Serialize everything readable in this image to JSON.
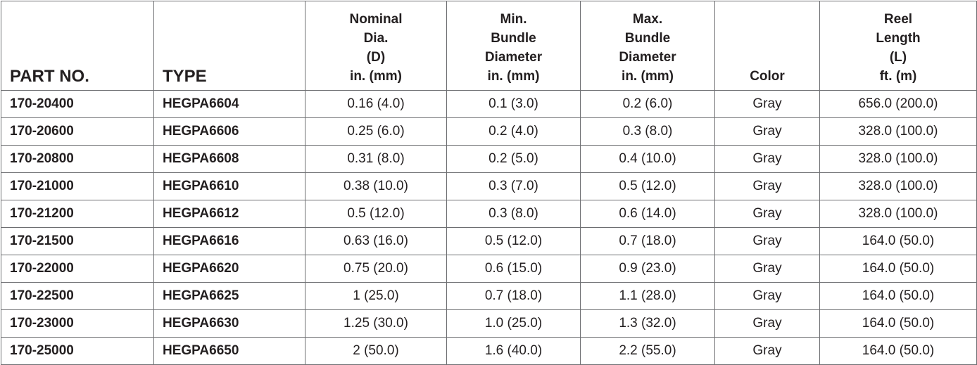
{
  "headers": {
    "part_no": "PART NO.",
    "type": "TYPE",
    "nominal": [
      "Nominal",
      "Dia.",
      "(D)",
      "in. (mm)"
    ],
    "min_bundle": [
      "Min.",
      "Bundle",
      "Diameter",
      "in. (mm)"
    ],
    "max_bundle": [
      "Max.",
      "Bundle",
      "Diameter",
      "in. (mm)"
    ],
    "color": "Color",
    "reel": [
      "Reel",
      "Length",
      "(L)",
      "ft. (m)"
    ]
  },
  "rows": [
    {
      "part_no": "170-20400",
      "type": "HEGPA6604",
      "nominal": "0.16 (4.0)",
      "min_bundle": "0.1 (3.0)",
      "max_bundle": "0.2 (6.0)",
      "color": "Gray",
      "reel": "656.0 (200.0)"
    },
    {
      "part_no": "170-20600",
      "type": "HEGPA6606",
      "nominal": "0.25 (6.0)",
      "min_bundle": "0.2 (4.0)",
      "max_bundle": "0.3 (8.0)",
      "color": "Gray",
      "reel": "328.0 (100.0)"
    },
    {
      "part_no": "170-20800",
      "type": "HEGPA6608",
      "nominal": "0.31 (8.0)",
      "min_bundle": "0.2 (5.0)",
      "max_bundle": "0.4 (10.0)",
      "color": "Gray",
      "reel": "328.0 (100.0)"
    },
    {
      "part_no": "170-21000",
      "type": "HEGPA6610",
      "nominal": "0.38 (10.0)",
      "min_bundle": "0.3 (7.0)",
      "max_bundle": "0.5 (12.0)",
      "color": "Gray",
      "reel": "328.0 (100.0)"
    },
    {
      "part_no": "170-21200",
      "type": "HEGPA6612",
      "nominal": "0.5 (12.0)",
      "min_bundle": "0.3 (8.0)",
      "max_bundle": "0.6 (14.0)",
      "color": "Gray",
      "reel": "328.0 (100.0)"
    },
    {
      "part_no": "170-21500",
      "type": "HEGPA6616",
      "nominal": "0.63 (16.0)",
      "min_bundle": "0.5 (12.0)",
      "max_bundle": "0.7 (18.0)",
      "color": "Gray",
      "reel": "164.0 (50.0)"
    },
    {
      "part_no": "170-22000",
      "type": "HEGPA6620",
      "nominal": "0.75 (20.0)",
      "min_bundle": "0.6 (15.0)",
      "max_bundle": "0.9 (23.0)",
      "color": "Gray",
      "reel": "164.0 (50.0)"
    },
    {
      "part_no": "170-22500",
      "type": "HEGPA6625",
      "nominal": "1 (25.0)",
      "min_bundle": "0.7 (18.0)",
      "max_bundle": "1.1 (28.0)",
      "color": "Gray",
      "reel": "164.0 (50.0)"
    },
    {
      "part_no": "170-23000",
      "type": "HEGPA6630",
      "nominal": "1.25 (30.0)",
      "min_bundle": "1.0 (25.0)",
      "max_bundle": "1.3 (32.0)",
      "color": "Gray",
      "reel": "164.0 (50.0)"
    },
    {
      "part_no": "170-25000",
      "type": "HEGPA6650",
      "nominal": "2 (50.0)",
      "min_bundle": "1.6 (40.0)",
      "max_bundle": "2.2 (55.0)",
      "color": "Gray",
      "reel": "164.0 (50.0)"
    }
  ]
}
